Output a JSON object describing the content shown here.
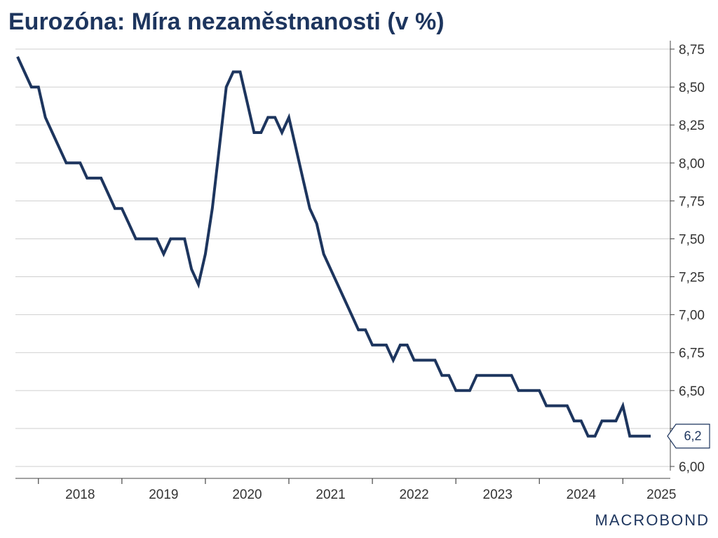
{
  "chart_data": {
    "type": "line",
    "title": "Eurozóna: Míra nezaměstnanosti (v %)",
    "xlabel": "",
    "ylabel": "",
    "ylim": [
      6.0,
      8.75
    ],
    "yticks": [
      "6,00",
      "6,25",
      "6,50",
      "6,75",
      "7,00",
      "7,25",
      "7,50",
      "7,75",
      "8,00",
      "8,25",
      "8,50",
      "8,75"
    ],
    "x_tick_labels": [
      "2018",
      "2019",
      "2020",
      "2021",
      "2022",
      "2023",
      "2024",
      "2025"
    ],
    "y_axis_position": "right",
    "grid": true,
    "line_color": "#1d355e",
    "last_value_label": "6,2",
    "series": [
      {
        "name": "",
        "x": [
          "2017-10",
          "2017-11",
          "2017-12",
          "2018-01",
          "2018-02",
          "2018-03",
          "2018-04",
          "2018-05",
          "2018-06",
          "2018-07",
          "2018-08",
          "2018-09",
          "2018-10",
          "2018-11",
          "2018-12",
          "2019-01",
          "2019-02",
          "2019-03",
          "2019-04",
          "2019-05",
          "2019-06",
          "2019-07",
          "2019-08",
          "2019-09",
          "2019-10",
          "2019-11",
          "2019-12",
          "2020-01",
          "2020-02",
          "2020-03",
          "2020-04",
          "2020-05",
          "2020-06",
          "2020-07",
          "2020-08",
          "2020-09",
          "2020-10",
          "2020-11",
          "2020-12",
          "2021-01",
          "2021-02",
          "2021-03",
          "2021-04",
          "2021-05",
          "2021-06",
          "2021-07",
          "2021-08",
          "2021-09",
          "2021-10",
          "2021-11",
          "2021-12",
          "2022-01",
          "2022-02",
          "2022-03",
          "2022-04",
          "2022-05",
          "2022-06",
          "2022-07",
          "2022-08",
          "2022-09",
          "2022-10",
          "2022-11",
          "2022-12",
          "2023-01",
          "2023-02",
          "2023-03",
          "2023-04",
          "2023-05",
          "2023-06",
          "2023-07",
          "2023-08",
          "2023-09",
          "2023-10",
          "2023-11",
          "2023-12",
          "2024-01",
          "2024-02",
          "2024-03",
          "2024-04",
          "2024-05",
          "2024-06",
          "2024-07",
          "2024-08",
          "2024-09",
          "2024-10",
          "2024-11",
          "2024-12",
          "2025-01",
          "2025-02",
          "2025-03",
          "2025-04",
          "2025-05"
        ],
        "values": [
          8.7,
          8.6,
          8.5,
          8.5,
          8.3,
          8.2,
          8.1,
          8.0,
          8.0,
          8.0,
          7.9,
          7.9,
          7.9,
          7.8,
          7.7,
          7.7,
          7.6,
          7.5,
          7.5,
          7.5,
          7.5,
          7.4,
          7.5,
          7.5,
          7.5,
          7.3,
          7.2,
          7.4,
          7.7,
          8.1,
          8.5,
          8.6,
          8.6,
          8.4,
          8.2,
          8.2,
          8.3,
          8.3,
          8.2,
          8.3,
          8.1,
          7.9,
          7.7,
          7.6,
          7.4,
          7.3,
          7.2,
          7.1,
          7.0,
          6.9,
          6.9,
          6.8,
          6.8,
          6.8,
          6.7,
          6.8,
          6.8,
          6.7,
          6.7,
          6.7,
          6.7,
          6.6,
          6.6,
          6.5,
          6.5,
          6.5,
          6.6,
          6.6,
          6.6,
          6.6,
          6.6,
          6.6,
          6.5,
          6.5,
          6.5,
          6.5,
          6.4,
          6.4,
          6.4,
          6.4,
          6.3,
          6.3,
          6.2,
          6.2,
          6.3,
          6.3,
          6.3,
          6.4,
          6.2,
          6.2,
          6.2,
          6.2
        ]
      }
    ]
  },
  "brand": {
    "text": "MACROBOND"
  }
}
